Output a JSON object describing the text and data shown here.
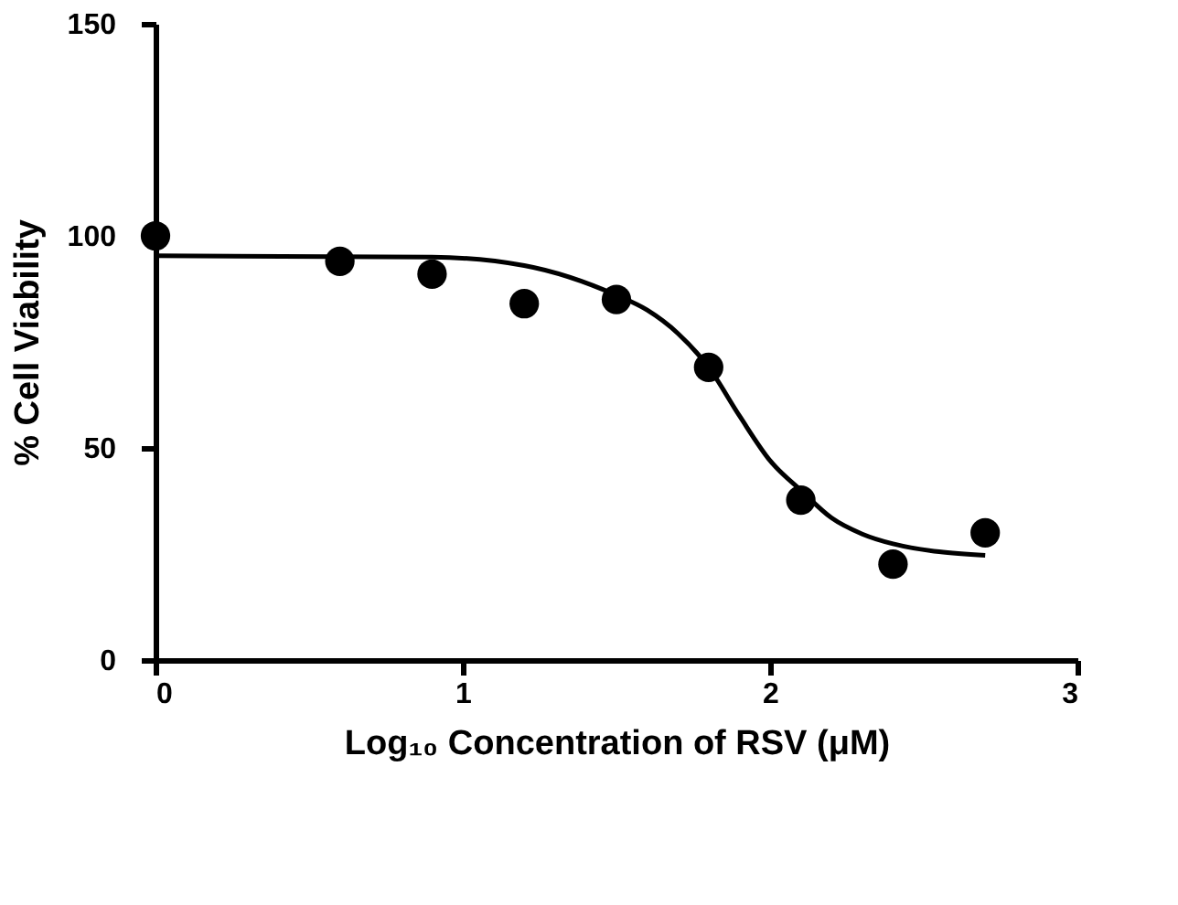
{
  "chart_data": {
    "type": "scatter",
    "xlabel": "Log₁₀ Concentration of RSV (μM)",
    "ylabel": "% Cell Viability",
    "xlim": [
      0,
      3
    ],
    "xticks": [
      0,
      1,
      2,
      3
    ],
    "ylim": [
      0,
      150
    ],
    "yticks": [
      0,
      50,
      100,
      150
    ],
    "grid": false,
    "series": [
      {
        "marker": "circle",
        "color": "#000000",
        "x": [
          0,
          0.6,
          0.9,
          1.2,
          1.5,
          1.8,
          2.1,
          2.4,
          2.7
        ],
        "values": [
          100,
          94,
          91,
          84,
          85,
          69,
          37.7,
          22.6,
          30
        ]
      },
      {
        "type": "line",
        "color": "#000000",
        "line_style": "solid",
        "x": [
          0,
          0.9,
          1.2,
          1.5,
          1.6,
          1.7,
          1.8,
          1.9,
          2.0,
          2.1,
          2.2,
          2.3,
          2.4,
          2.7
        ],
        "values": [
          95.3,
          95,
          93,
          86,
          82.5,
          77,
          69,
          57.6,
          47,
          40,
          33.5,
          29.7,
          27.4,
          24.7
        ]
      }
    ]
  }
}
